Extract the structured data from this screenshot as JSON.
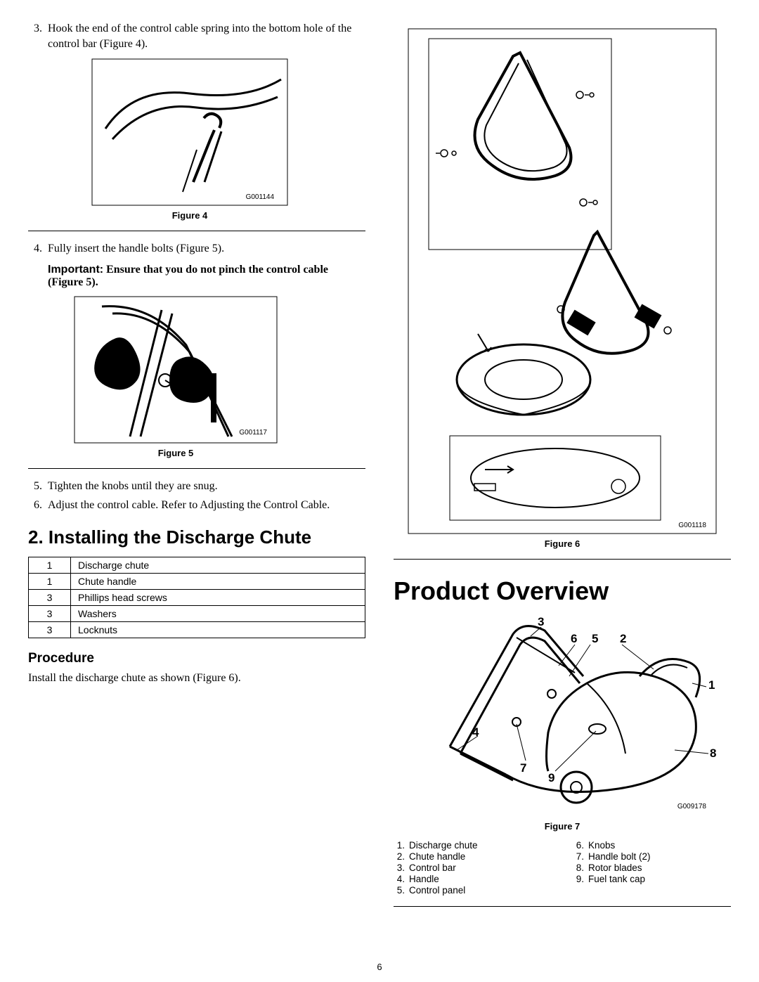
{
  "left": {
    "step3": {
      "num": "3.",
      "text": "Hook the end of the control cable spring into the bottom hole of the control bar (Figure 4)."
    },
    "fig4": {
      "caption": "Figure 4",
      "code": "G001144"
    },
    "step4": {
      "num": "4.",
      "text": "Fully insert the handle bolts (Figure 5)."
    },
    "important": {
      "label": "Important:",
      "text": "Ensure that you do not pinch the control cable (Figure 5)."
    },
    "fig5": {
      "caption": "Figure 5",
      "code": "G001117"
    },
    "step5": {
      "num": "5.",
      "text": "Tighten the knobs until they are snug."
    },
    "step6": {
      "num": "6.",
      "text": "Adjust the control cable. Refer to Adjusting the Control Cable."
    },
    "section_title": "2. Installing the Discharge Chute",
    "parts": [
      {
        "qty": "1",
        "name": "Discharge chute"
      },
      {
        "qty": "1",
        "name": "Chute handle"
      },
      {
        "qty": "3",
        "name": "Phillips head screws"
      },
      {
        "qty": "3",
        "name": "Washers"
      },
      {
        "qty": "3",
        "name": "Locknuts"
      }
    ],
    "procedure_heading": "Procedure",
    "procedure_text": "Install the discharge chute as shown (Figure 6)."
  },
  "right": {
    "fig6": {
      "caption": "Figure 6",
      "code": "G001118"
    },
    "overview_title": "Product Overview",
    "fig7": {
      "caption": "Figure 7",
      "code": "G009178",
      "callouts": [
        "1",
        "2",
        "3",
        "4",
        "5",
        "6",
        "7",
        "8",
        "9"
      ]
    },
    "legend_left": [
      {
        "n": "1.",
        "t": "Discharge chute"
      },
      {
        "n": "2.",
        "t": "Chute handle"
      },
      {
        "n": "3.",
        "t": "Control bar"
      },
      {
        "n": "4.",
        "t": "Handle"
      },
      {
        "n": "5.",
        "t": "Control panel"
      }
    ],
    "legend_right": [
      {
        "n": "6.",
        "t": "Knobs"
      },
      {
        "n": "7.",
        "t": "Handle bolt (2)"
      },
      {
        "n": "8.",
        "t": "Rotor blades"
      },
      {
        "n": "9.",
        "t": "Fuel tank cap"
      }
    ]
  },
  "page_number": "6",
  "colors": {
    "ink": "#000000",
    "paper": "#ffffff"
  }
}
